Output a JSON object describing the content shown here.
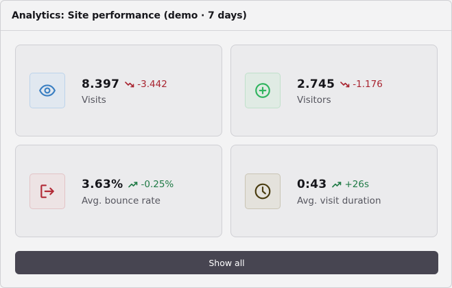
{
  "header": {
    "title": "Analytics: Site performance (demo · 7 days)"
  },
  "stats": [
    {
      "icon": "eye-icon",
      "value": "8.397",
      "trend_direction": "down",
      "trend": "-3.442",
      "label": "Visits",
      "accent": "#3a7fc2"
    },
    {
      "icon": "plus-circle-icon",
      "value": "2.745",
      "trend_direction": "down",
      "trend": "-1.176",
      "label": "Visitors",
      "accent": "#2fb45e"
    },
    {
      "icon": "logout-icon",
      "value": "3.63%",
      "trend_direction": "up",
      "trend": "-0.25%",
      "label": "Avg. bounce rate",
      "accent": "#b22a36"
    },
    {
      "icon": "clock-icon",
      "value": "0:43",
      "trend_direction": "up",
      "trend": "+26s",
      "label": "Avg. visit duration",
      "accent": "#4a3d10"
    }
  ],
  "colors": {
    "trend_down": "#a8232f",
    "trend_up": "#1f7a45",
    "button_bg": "#474551"
  },
  "footer": {
    "button_label": "Show all"
  }
}
